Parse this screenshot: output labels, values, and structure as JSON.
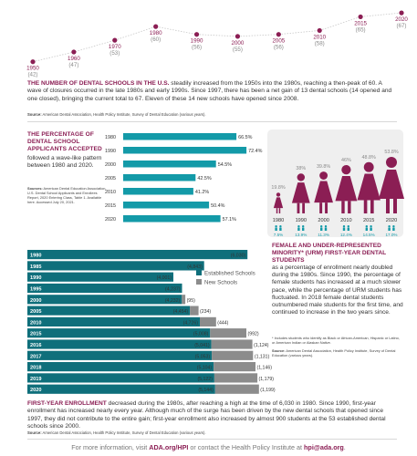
{
  "timeline": {
    "points": [
      {
        "year": "1950",
        "count": "(42)"
      },
      {
        "year": "1960",
        "count": "(47)"
      },
      {
        "year": "1970",
        "count": "(53)"
      },
      {
        "year": "1980",
        "count": "(60)"
      },
      {
        "year": "1990",
        "count": "(56)"
      },
      {
        "year": "2000",
        "count": "(55)"
      },
      {
        "year": "2005",
        "count": "(56)"
      },
      {
        "year": "2010",
        "count": "(58)"
      },
      {
        "year": "2015",
        "count": "(65)"
      },
      {
        "year": "2020",
        "count": "(67)"
      }
    ]
  },
  "schools": {
    "lead": "THE NUMBER OF DENTAL SCHOOLS IN THE U.S.",
    "body": " steadily increased from the 1950s into the 1980s, reaching a then-peak of 60. A wave of closures occurred in the late 1980s and early 1990s. Since 1997, there has been a net gain of 13 dental schools (14 opened and one closed), bringing the current total to 67. Eleven of these 14 new schools have opened since 2008.",
    "source_label": "Source:",
    "source": " American Dental Association, Health Policy Institute, Survey of Dental Education (various years)."
  },
  "applicants": {
    "title": "THE PERCENTAGE OF DENTAL SCHOOL APPLICANTS ACCEPTED",
    "text": "followed a wave-like pattern between 1980 and 2020.",
    "source_label": "Sources:",
    "source": " American Dental Education Association, U.S. Dental School Applicants and Enrollees Report, 2020 Entering Class, Table 1. Available here. Accessed July 20, 2021."
  },
  "urm": {
    "title": "FEMALE AND UNDER-REPRESENTED MINORITY* (URM) FIRST-YEAR DENTAL STUDENTS",
    "text": " as a percentage of enrollment nearly doubled during the 1980s. Since 1990, the percentage of female students has increased at a much slower pace, while the percentage of URM students has fluctuated. In 2018 female dental students outnumbered male students for the first time, and continued to increase in the two years since.",
    "note": "* Includes students who identify as Black or African-American, Hispanic or Latino, or American Indian or Alaskan Native.",
    "source_label": "Source:",
    "source": " American Dental Association, Health Policy Institute, Survey of Dental Education (various years)."
  },
  "enrollment": {
    "lead": "FIRST-YEAR ENROLLMENT",
    "body": " decreased during the 1980s, after reaching a high at the time of 6,030 in 1980. Since 1990, first-year enrollment has increased nearly every year. Although much of the surge has been driven by the new dental schools that opened since 1997, they did not contribute to the entire gain; first-year enrollment also increased by almost 900 students at the 53 established dental schools since 2000.",
    "source_label": "Source:",
    "source": " American Dental Association, Health Policy Institute, Survey of Dental Education (various years)."
  },
  "footer": {
    "pre": "For more information, visit ",
    "link1": "ADA.org/HPI",
    "mid": " or contact the Health Policy Institute at ",
    "link2": "hpi@ada.org",
    "post": "."
  },
  "colors": {
    "maroon": "#8b1e54",
    "teal": "#139aa8",
    "teal_dark": "#0f6f7b",
    "grey_bar": "#8c8c8c",
    "grey_line": "#c8c8c8"
  },
  "chart_data": [
    {
      "type": "line",
      "x": [
        1950,
        1960,
        1970,
        1980,
        1990,
        2000,
        2005,
        2010,
        2015,
        2020
      ],
      "values": [
        42,
        47,
        53,
        60,
        56,
        55,
        56,
        58,
        65,
        67
      ]
    },
    {
      "type": "bar",
      "categories": [
        "1980",
        "1990",
        "2000",
        "2005",
        "2010",
        "2015",
        "2020"
      ],
      "values": [
        66.5,
        72.4,
        54.5,
        42.5,
        41.2,
        50.4,
        57.1
      ],
      "labels": [
        "66.5%",
        "72.4%",
        "54.5%",
        "42.5%",
        "41.2%",
        "50.4%",
        "57.1%"
      ],
      "xlim": [
        0,
        75
      ]
    },
    {
      "type": "bar",
      "categories": [
        "1980",
        "1990",
        "2000",
        "2010",
        "2015",
        "2020"
      ],
      "series": [
        {
          "name": "Female",
          "values": [
            19.8,
            38,
            39.8,
            46,
            48.8,
            53.8
          ],
          "labels": [
            "19.8%",
            "38%",
            "39.8%",
            "46%",
            "48.8%",
            "53.8%"
          ]
        },
        {
          "name": "URM",
          "values": [
            7.5,
            13.9,
            11.3,
            12.4,
            14.5,
            17.0
          ],
          "labels": [
            "7.5%",
            "13.9%",
            "11.3%",
            "12.4%",
            "14.5%",
            "17.0%"
          ]
        }
      ]
    },
    {
      "type": "bar",
      "stacked": true,
      "categories": [
        "1980",
        "1985",
        "1990",
        "1995",
        "2000",
        "2005",
        "2010",
        "2015",
        "2016",
        "2017",
        "2018",
        "2019",
        "2020"
      ],
      "totals": [
        6030,
        4843,
        4001,
        4237,
        4327,
        4688,
        5170,
        6000,
        6165,
        6184,
        6250,
        6301,
        6343
      ],
      "series": [
        {
          "name": "Established Schools",
          "values": [
            6030,
            4843,
            4001,
            4237,
            4232,
            4454,
            4726,
            5008,
            5041,
            5053,
            5104,
            5122,
            5144
          ],
          "labels": [
            "(6,030)",
            "(4,843)",
            "(4,001)",
            "(4,237)",
            "(4,232)",
            "(4,454)",
            "(4,726)",
            "(5,008)",
            "(5,041)",
            "(5,053)",
            "(5,104)",
            "(5,122)",
            "(5,144)"
          ]
        },
        {
          "name": "New Schools",
          "values": [
            0,
            0,
            0,
            0,
            95,
            234,
            444,
            992,
            1124,
            1131,
            1146,
            1179,
            1199
          ],
          "labels": [
            "",
            "",
            "",
            "",
            "(95)",
            "(234)",
            "(444)",
            "(992)",
            "(1,124)",
            "(1,131)",
            "(1,146)",
            "(1,179)",
            "(1,199)"
          ]
        }
      ]
    }
  ]
}
